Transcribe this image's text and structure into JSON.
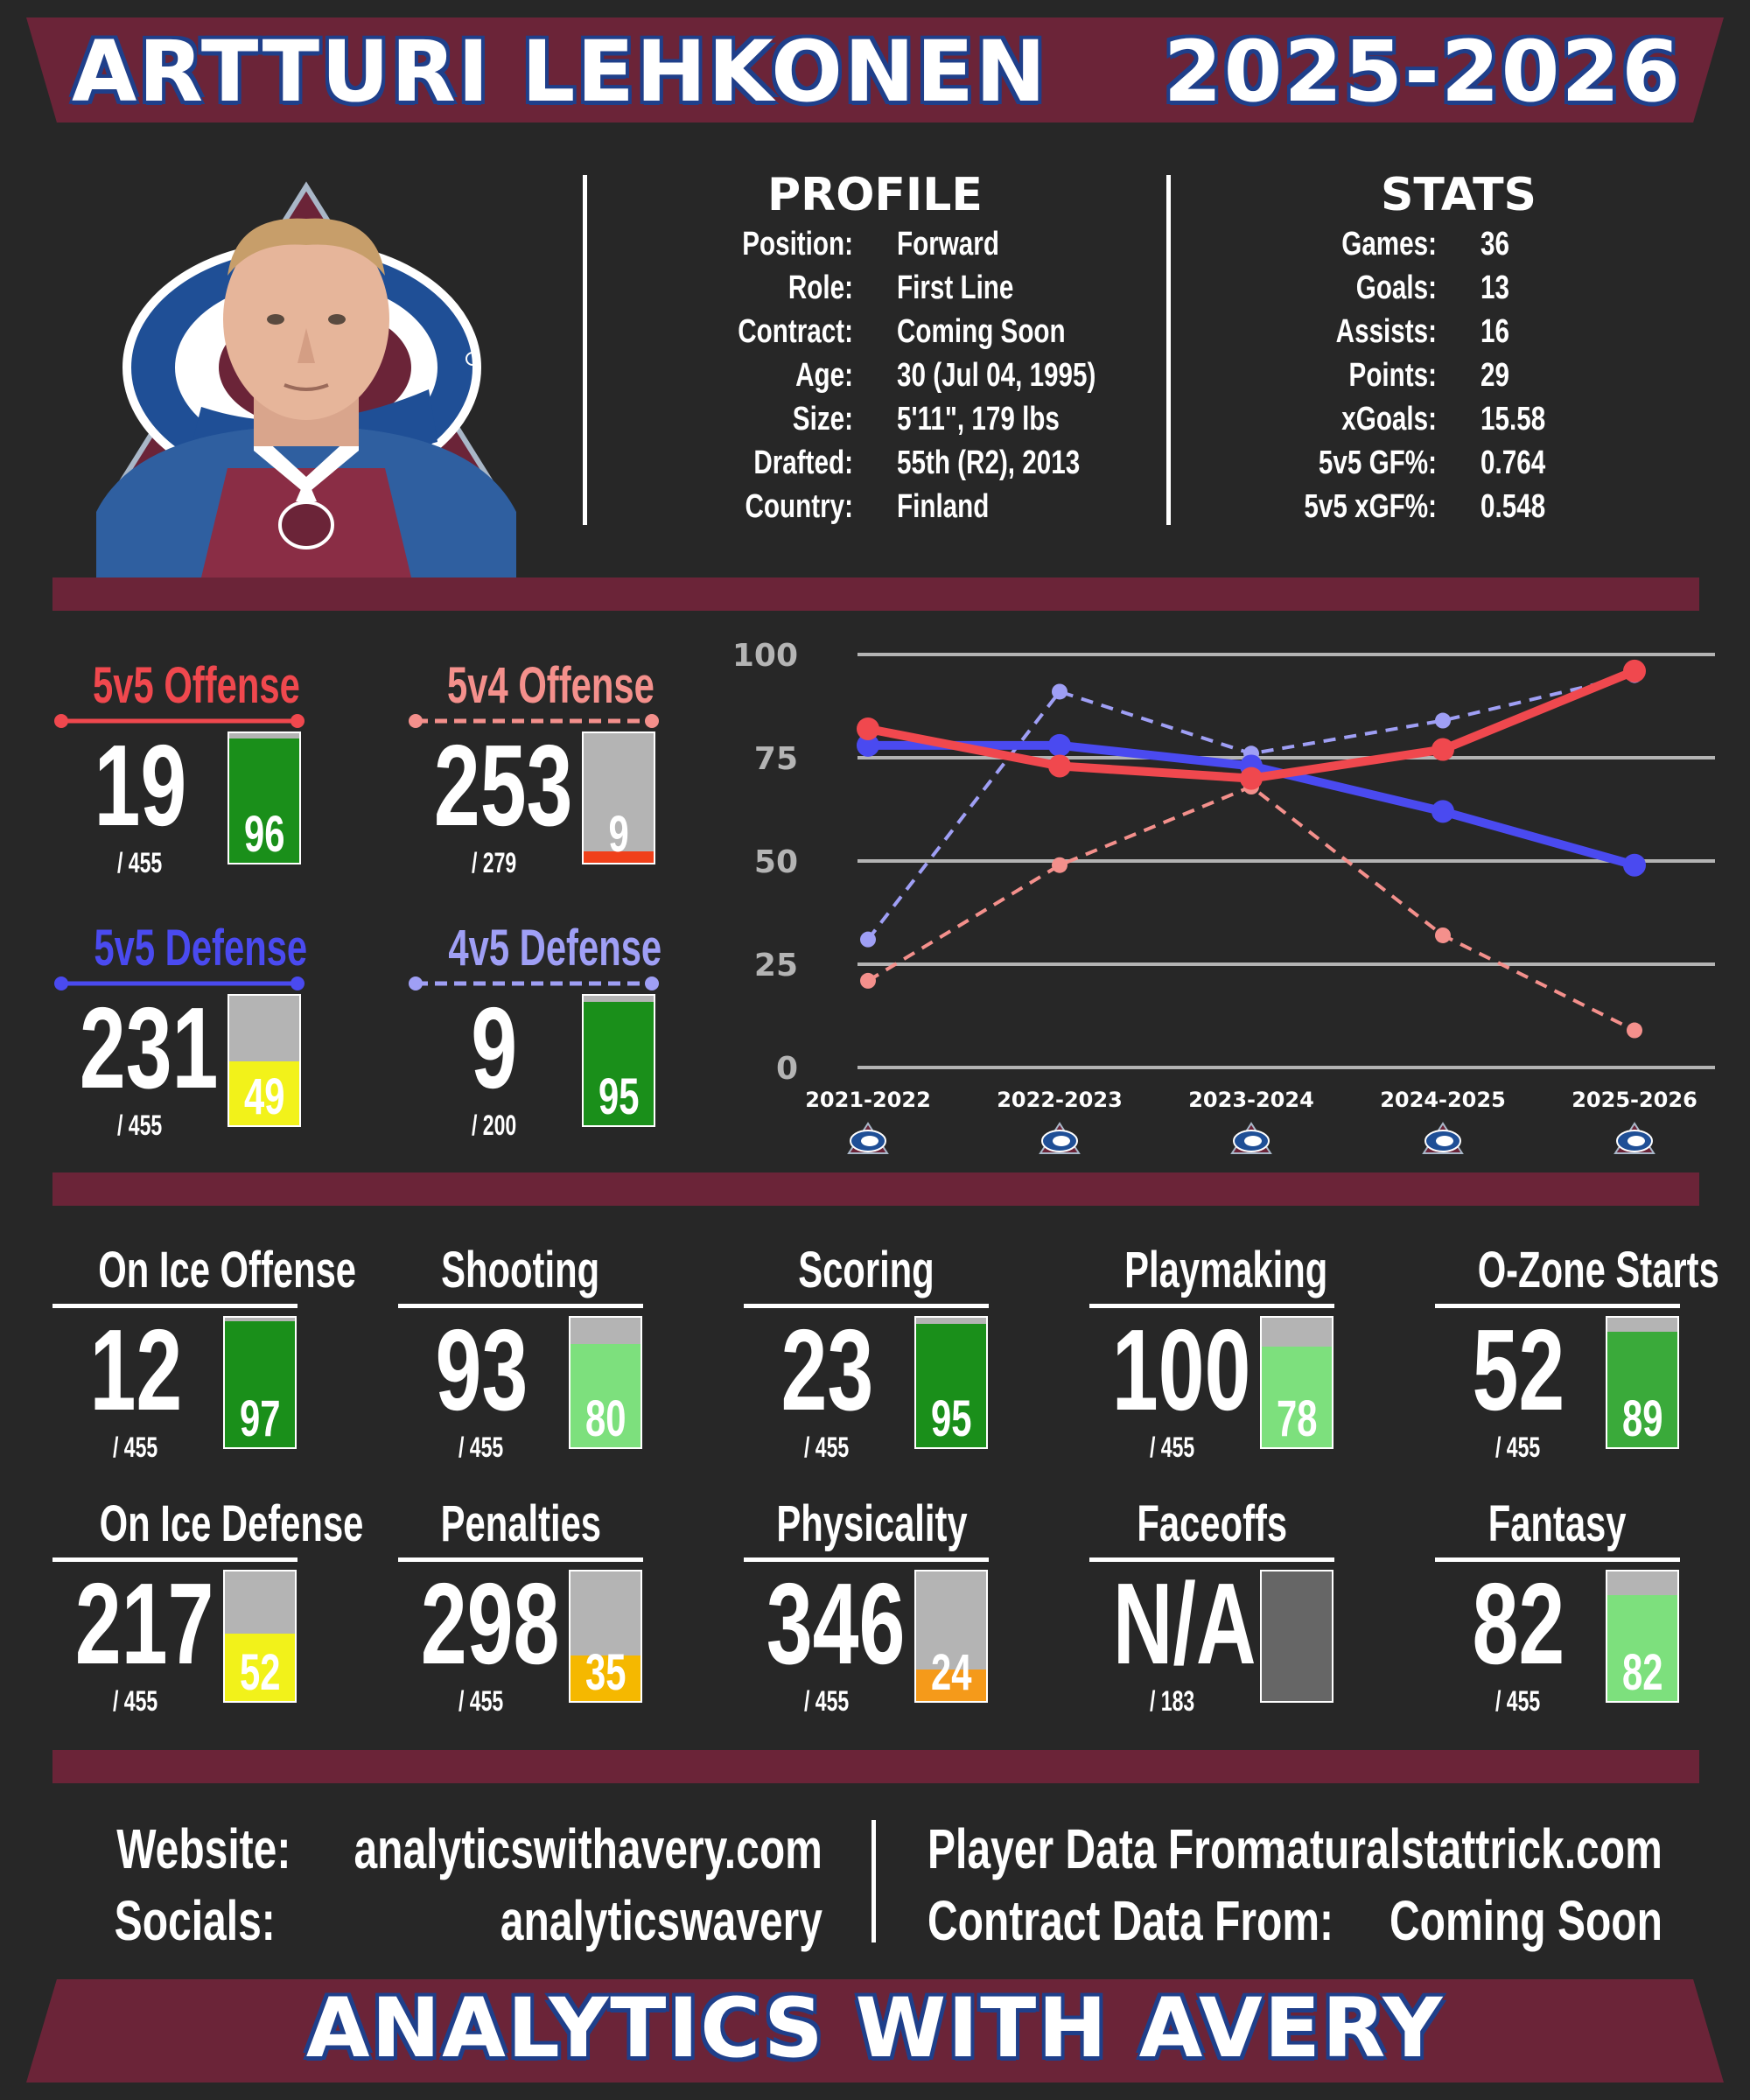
{
  "header": {
    "player_name": "ARTTURI LEHKONEN",
    "season": "2025-2026"
  },
  "colors": {
    "maroon": "#6b2438",
    "navy": "#1f3f8a",
    "blue_line": "#4a4af0",
    "red_line": "#f0484e",
    "pink_dash": "#f4908c",
    "lilac_dash": "#9f9ff5"
  },
  "profile": {
    "title": "PROFILE",
    "rows": [
      {
        "key": "Position:",
        "value": "Forward"
      },
      {
        "key": "Role:",
        "value": "First Line"
      },
      {
        "key": "Contract:",
        "value": "Coming Soon"
      },
      {
        "key": "Age:",
        "value": "30 (Jul 04, 1995)"
      },
      {
        "key": "Size:",
        "value": "5'11\", 179 lbs"
      },
      {
        "key": "Drafted:",
        "value": "55th (R2), 2013"
      },
      {
        "key": "Country:",
        "value": "Finland"
      }
    ]
  },
  "stats": {
    "title": "STATS",
    "rows": [
      {
        "key": "Games:",
        "value": "36"
      },
      {
        "key": "Goals:",
        "value": "13"
      },
      {
        "key": "Assists:",
        "value": "16"
      },
      {
        "key": "Points:",
        "value": "29"
      },
      {
        "key": "xGoals:",
        "value": "15.58"
      },
      {
        "key": "5v5 GF%:",
        "value": "0.764"
      },
      {
        "key": "5v5 xGF%:",
        "value": "0.548"
      }
    ]
  },
  "special_teams": [
    {
      "label": "5v5 Offense",
      "rank": "19",
      "of": "/ 455",
      "pct": 96,
      "label_color": "#f0484e",
      "line_style": "solid"
    },
    {
      "label": "5v4 Offense",
      "rank": "253",
      "of": "/ 279",
      "pct": 9,
      "label_color": "#f4908c",
      "line_style": "dashed"
    },
    {
      "label": "5v5 Defense",
      "rank": "231",
      "of": "/ 455",
      "pct": 49,
      "label_color": "#4a4af0",
      "line_style": "solid"
    },
    {
      "label": "4v5 Defense",
      "rank": "9",
      "of": "/ 200",
      "pct": 95,
      "label_color": "#9f9ff5",
      "line_style": "dashed"
    }
  ],
  "chart_data": {
    "type": "line",
    "categories": [
      "2021-2022",
      "2022-2023",
      "2023-2024",
      "2024-2025",
      "2025-2026"
    ],
    "ylim": [
      0,
      100
    ],
    "yticks": [
      0,
      25,
      50,
      75,
      100
    ],
    "grid": true,
    "series": [
      {
        "name": "5v5 Offense",
        "values": [
          82,
          73,
          70,
          77,
          96
        ],
        "color": "#f0484e",
        "style": "solid"
      },
      {
        "name": "5v5 Defense",
        "values": [
          78,
          78,
          73,
          62,
          49
        ],
        "color": "#4a4af0",
        "style": "solid"
      },
      {
        "name": "5v4 Offense",
        "values": [
          21,
          49,
          68,
          32,
          9
        ],
        "color": "#f4908c",
        "style": "dashed"
      },
      {
        "name": "4v5 Defense",
        "values": [
          31,
          91,
          76,
          84,
          95
        ],
        "color": "#9f9ff5",
        "style": "dashed"
      }
    ]
  },
  "metrics": [
    {
      "label": "On Ice Offense",
      "rank": "12",
      "of": "/ 455",
      "pct": 97,
      "pct_text": "97"
    },
    {
      "label": "Shooting",
      "rank": "93",
      "of": "/ 455",
      "pct": 80,
      "pct_text": "80"
    },
    {
      "label": "Scoring",
      "rank": "23",
      "of": "/ 455",
      "pct": 95,
      "pct_text": "95"
    },
    {
      "label": "Playmaking",
      "rank": "100",
      "of": "/ 455",
      "pct": 78,
      "pct_text": "78"
    },
    {
      "label": "O-Zone Starts",
      "rank": "52",
      "of": "/ 455",
      "pct": 89,
      "pct_text": "89"
    },
    {
      "label": "On Ice Defense",
      "rank": "217",
      "of": "/ 455",
      "pct": 52,
      "pct_text": "52"
    },
    {
      "label": "Penalties",
      "rank": "298",
      "of": "/ 455",
      "pct": 35,
      "pct_text": "35"
    },
    {
      "label": "Physicality",
      "rank": "346",
      "of": "/ 455",
      "pct": 24,
      "pct_text": "24"
    },
    {
      "label": "Faceoffs",
      "rank": "N/A",
      "of": "/ 183",
      "pct": null,
      "pct_text": ""
    },
    {
      "label": "Fantasy",
      "rank": "82",
      "of": "/ 455",
      "pct": 82,
      "pct_text": "82"
    }
  ],
  "footer": {
    "website_label": "Website:",
    "website": "analyticswithavery.com",
    "socials_label": "Socials:",
    "socials": "analyticswavery",
    "player_data_label": "Player Data From:",
    "player_data": "naturalstattrick.com",
    "contract_data_label": "Contract Data From:",
    "contract_data": "Coming Soon"
  },
  "brand": {
    "title": "ANALYTICS WITH AVERY"
  },
  "icons": {
    "team_logo": "avalanche-logo-icon",
    "headshot": "player-headshot"
  }
}
